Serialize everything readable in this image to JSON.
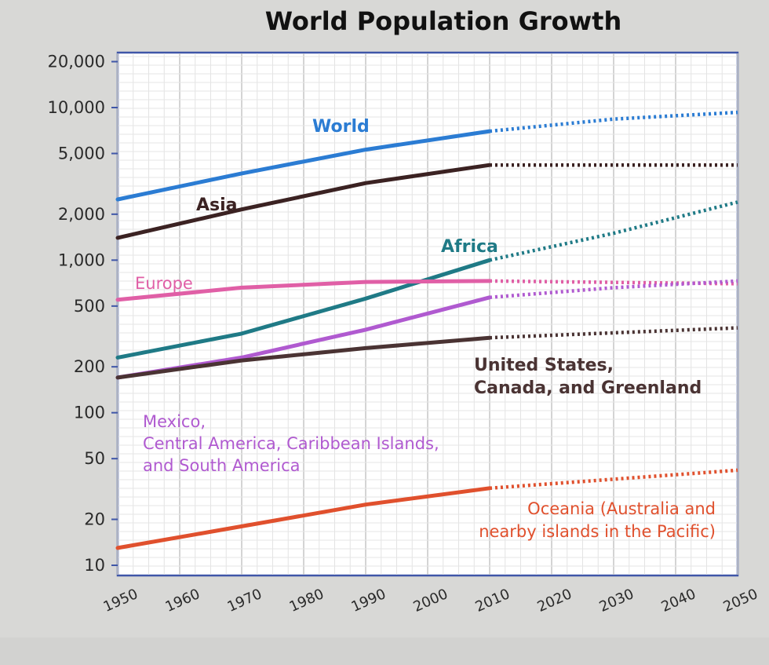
{
  "chart_data": {
    "type": "line",
    "title": "World Population Growth",
    "xlabel": "",
    "ylabel": "",
    "y_scale": "log",
    "ylim": [
      10,
      20000
    ],
    "xlim": [
      1950,
      2050
    ],
    "grid": true,
    "legend": "inline labels",
    "x_ticks": [
      "1950",
      "1960",
      "1970",
      "1980",
      "1990",
      "2000",
      "2010",
      "2020",
      "2030",
      "2040",
      "2050"
    ],
    "y_ticks": [
      {
        "value": 20000,
        "label": "20,000"
      },
      {
        "value": 10000,
        "label": "10,000"
      },
      {
        "value": 5000,
        "label": "5,000"
      },
      {
        "value": 2000,
        "label": "2,000"
      },
      {
        "value": 1000,
        "label": "1,000"
      },
      {
        "value": 500,
        "label": "500"
      },
      {
        "value": 200,
        "label": "200"
      },
      {
        "value": 100,
        "label": "100"
      },
      {
        "value": 50,
        "label": "50"
      },
      {
        "value": 20,
        "label": "20"
      },
      {
        "value": 10,
        "label": "10"
      }
    ],
    "series": [
      {
        "name": "World",
        "color": "#2b7cd3",
        "actual": {
          "x": [
            1950,
            1970,
            1990,
            2010
          ],
          "y": [
            2500,
            3700,
            5300,
            7000
          ]
        },
        "projected": {
          "x": [
            2010,
            2030,
            2050
          ],
          "y": [
            7000,
            8400,
            9300
          ]
        }
      },
      {
        "name": "Asia",
        "color": "#3b2222",
        "actual": {
          "x": [
            1950,
            1970,
            1990,
            2010
          ],
          "y": [
            1400,
            2150,
            3200,
            4200
          ]
        },
        "projected": {
          "x": [
            2010,
            2050
          ],
          "y": [
            4200,
            4200
          ]
        }
      },
      {
        "name": "Africa",
        "color": "#1f7a86",
        "actual": {
          "x": [
            1950,
            1970,
            1990,
            2010
          ],
          "y": [
            230,
            330,
            560,
            1000
          ]
        },
        "projected": {
          "x": [
            2010,
            2030,
            2050
          ],
          "y": [
            1000,
            1500,
            2400
          ]
        }
      },
      {
        "name": "Europe",
        "color": "#e05fa6",
        "actual": {
          "x": [
            1950,
            1970,
            1990,
            2010
          ],
          "y": [
            550,
            660,
            720,
            730
          ]
        },
        "projected": {
          "x": [
            2010,
            2050
          ],
          "y": [
            730,
            700
          ]
        }
      },
      {
        "name": "Mexico,\nCentral America, Caribbean Islands,\nand South America",
        "color": "#b05ad0",
        "actual": {
          "x": [
            1950,
            1970,
            1990,
            2010
          ],
          "y": [
            170,
            230,
            350,
            570
          ]
        },
        "projected": {
          "x": [
            2010,
            2030,
            2050
          ],
          "y": [
            570,
            660,
            730
          ]
        }
      },
      {
        "name": "United States,\nCanada, and Greenland",
        "color": "#4a3333",
        "actual": {
          "x": [
            1950,
            1970,
            1990,
            2010
          ],
          "y": [
            170,
            220,
            265,
            310
          ]
        },
        "projected": {
          "x": [
            2010,
            2050
          ],
          "y": [
            310,
            360
          ]
        }
      },
      {
        "name": "Oceania (Australia and\nnearby islands in the Pacific)",
        "color": "#e0502d",
        "actual": {
          "x": [
            1950,
            1970,
            1990,
            2010
          ],
          "y": [
            13,
            18,
            25,
            32
          ]
        },
        "projected": {
          "x": [
            2010,
            2050
          ],
          "y": [
            32,
            42
          ]
        }
      }
    ]
  }
}
